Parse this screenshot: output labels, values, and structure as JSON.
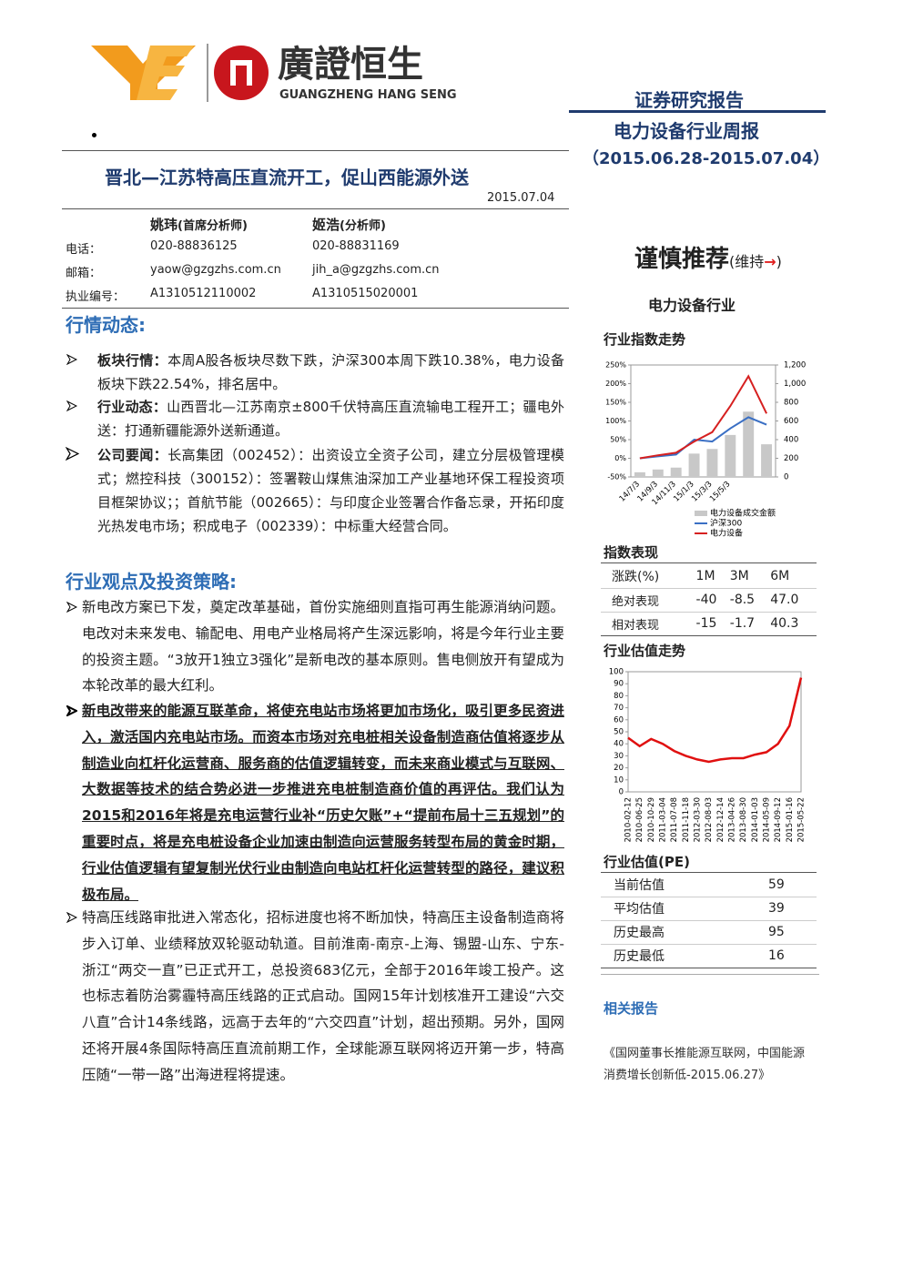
{
  "header": {
    "logo_cn": "廣證恒生",
    "logo_en": "GUANGZHENG HANG SENG",
    "report_type": "证券研究报告",
    "report_name": "电力设备行业周报",
    "period": "（2015.06.28-2015.07.04）"
  },
  "title": "晋北—江苏特高压直流开工，促山西能源外送",
  "date": "2015.07.04",
  "analysts": {
    "row_labels": [
      "电话：",
      "邮箱：",
      "执业编号："
    ],
    "people": [
      {
        "name": "姚玮",
        "role": "(首席分析师)",
        "phone": "020-88836125",
        "email": "yaow@gzgzhs.com.cn",
        "license": "A1310512110002"
      },
      {
        "name": "姬浩",
        "role": "(分析师)",
        "phone": "020-88831169",
        "email": "jih_a@gzgzhs.com.cn",
        "license": "A1310515020001"
      }
    ]
  },
  "market": {
    "heading": "行情动态:",
    "bullets": [
      {
        "lead": "板块行情：",
        "text": "本周A股各板块尽数下跌，沪深300本周下跌10.38%，电力设备板块下跌22.54%，排名居中。"
      },
      {
        "lead": "行业动态：",
        "text": "山西晋北—江苏南京±800千伏特高压直流输电工程开工；疆电外送：打通新疆能源外送新通道。"
      },
      {
        "lead": "公司要闻：",
        "text": "长高集团（002452）：出资设立全资子公司，建立分层极管理模式；燃控科技（300152）：签署鞍山煤焦油深加工产业基地环保工程投资项目框架协议；；首航节能（002665）：与印度企业签署合作备忘录，开拓印度光热发电市场；积成电子（002339）：中标重大经营合同。"
      }
    ]
  },
  "views": {
    "heading": "行业观点及投资策略:",
    "paragraphs": [
      "新电改方案已下发，奠定改革基础，首份实施细则直指可再生能源消纳问题。电改对未来发电、输配电、用电产业格局将产生深远影响，将是今年行业主要的投资主题。“3放开1独立3强化”是新电改的基本原则。售电侧放开有望成为本轮改革的最大红利。",
      "新电改带来的能源互联革命，将使充电站市场将更加市场化，吸引更多民资进入，激活国内充电站市场。而资本市场对充电桩相关设备制造商估值将逐步从制造业向杠杆化运营商、服务商的估值逻辑转变，而未来商业模式与互联网、大数据等技术的结合势必进一步推进充电桩制造商价值的再评估。我们认为2015和2016年将是充电运营行业补“历史欠账”+“提前布局十三五规划”的重要时点，将是充电桩设备企业加速由制造向运营服务转型布局的黄金时期，行业估值逻辑有望复制光伏行业由制造向电站杠杆化运营转型的路径，建议积极布局。",
      "特高压线路审批进入常态化，招标进度也将不断加快，特高压主设备制造商将步入订单、业绩释放双轮驱动轨道。目前淮南-南京-上海、锡盟-山东、宁东-浙江“两交一直”已正式开工，总投资683亿元，全部于2016年竣工投产。这也标志着防治雾霾特高压线路的正式启动。国网15年计划核准开工建设“六交八直”合计14条线路，远高于去年的“六交四直”计划，超出预期。另外，国网还将开展4条国际特高压直流前期工作，全球能源互联网将迈开第一步，特高压随“一带一路”出海进程将提速。"
    ]
  },
  "sidebar": {
    "rating": "谨慎推荐",
    "rating_open": "(维持",
    "rating_arrow": "→",
    "rating_close": ")",
    "industry": "电力设备行业",
    "index_table": {
      "title": "指数表现",
      "header": [
        "涨跌(%)",
        "1M",
        "3M",
        "6M"
      ],
      "rows": [
        [
          "绝对表现",
          "-40",
          "-8.5",
          "47.0"
        ],
        [
          "相对表现",
          "-15",
          "-1.7",
          "40.3"
        ]
      ]
    },
    "pe_table": {
      "title": "行业估值(PE)",
      "rows": [
        [
          "当前估值",
          "59"
        ],
        [
          "平均估值",
          "39"
        ],
        [
          "历史最高",
          "95"
        ],
        [
          "历史最低",
          "16"
        ]
      ]
    },
    "related": {
      "title": "相关报告",
      "items": [
        "《国网董事长推能源互联网，中国能源消费增长创新低-2015.06.27》"
      ]
    }
  },
  "chart_data": [
    {
      "type": "combo",
      "title": "行业指数走势",
      "categories": [
        "14/7/3",
        "14/9/3",
        "14/11/3",
        "15/1/3",
        "15/3/3",
        "15/5/3",
        null,
        null
      ],
      "series": [
        {
          "name": "电力设备成交金额",
          "type": "bar",
          "axis": "y2",
          "color": "#c8c8c8",
          "values": [
            50,
            80,
            100,
            250,
            300,
            450,
            700,
            350
          ]
        },
        {
          "name": "沪深300",
          "type": "line",
          "color": "#3a6fc4",
          "values": [
            0,
            5,
            10,
            50,
            45,
            80,
            110,
            90
          ]
        },
        {
          "name": "电力设备",
          "type": "line",
          "color": "#d62020",
          "values": [
            0,
            8,
            15,
            45,
            70,
            140,
            220,
            120
          ]
        }
      ],
      "ylim": [
        -50,
        250
      ],
      "yticks": [
        {
          "value": -50,
          "label": "-50%"
        },
        {
          "value": 0,
          "label": "0%"
        },
        {
          "value": 50,
          "label": "50%"
        },
        {
          "value": 100,
          "label": "100%"
        },
        {
          "value": 150,
          "label": "150%"
        },
        {
          "value": 200,
          "label": "200%"
        },
        {
          "value": 250,
          "label": "250%"
        }
      ],
      "y2lim": [
        0,
        1200
      ],
      "y2ticks": [
        0,
        200,
        400,
        600,
        800,
        {
          "value": 1000,
          "label": "1,000"
        },
        {
          "value": 1200,
          "label": "1,200"
        }
      ]
    },
    {
      "type": "line",
      "title": "行业估值走势",
      "categories": [
        "2010-02-12",
        "2010-06-25",
        "2010-10-29",
        "2011-03-04",
        "2011-07-08",
        "2011-11-18",
        "2012-03-30",
        "2012-08-03",
        "2012-12-14",
        "2013-04-26",
        "2013-08-30",
        "2014-01-03",
        "2014-05-09",
        "2014-09-12",
        "2015-01-16",
        "2015-05-22"
      ],
      "color": "#e01010",
      "values": [
        45,
        38,
        44,
        40,
        34,
        30,
        27,
        25,
        27,
        28,
        28,
        31,
        33,
        40,
        55,
        95
      ],
      "ylim": [
        0,
        100
      ],
      "yticks": [
        0,
        10,
        20,
        30,
        40,
        50,
        60,
        70,
        80,
        90,
        100
      ]
    }
  ]
}
